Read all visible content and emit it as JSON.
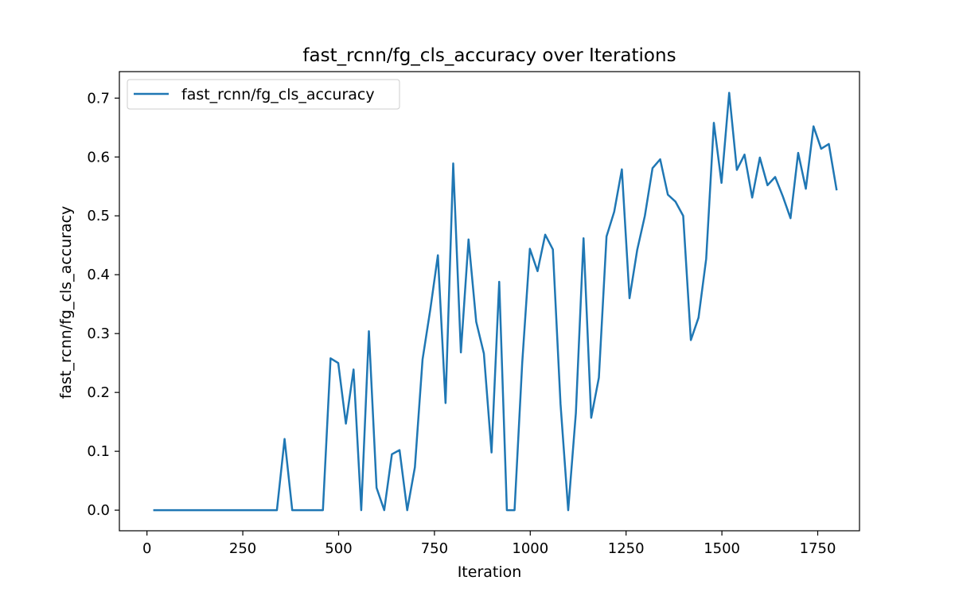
{
  "chart_data": {
    "type": "line",
    "title": "fast_rcnn/fg_cls_accuracy over Iterations",
    "xlabel": "Iteration",
    "ylabel": "fast_rcnn/fg_cls_accuracy",
    "xlim": [
      -72,
      1859
    ],
    "ylim": [
      -0.035,
      0.745
    ],
    "xticks": [
      0,
      250,
      500,
      750,
      1000,
      1250,
      1500,
      1750
    ],
    "yticks": [
      0.0,
      0.1,
      0.2,
      0.3,
      0.4,
      0.5,
      0.6,
      0.7
    ],
    "grid": false,
    "legend_position": "upper-left",
    "series": [
      {
        "name": "fast_rcnn/fg_cls_accuracy",
        "color": "#1f77b4",
        "x": [
          19,
          39,
          59,
          79,
          99,
          119,
          139,
          159,
          179,
          199,
          219,
          239,
          259,
          279,
          299,
          319,
          339,
          359,
          379,
          399,
          419,
          439,
          459,
          479,
          499,
          519,
          539,
          559,
          579,
          599,
          619,
          639,
          659,
          679,
          699,
          719,
          739,
          759,
          779,
          799,
          819,
          839,
          859,
          879,
          899,
          919,
          939,
          959,
          979,
          999,
          1019,
          1039,
          1059,
          1079,
          1099,
          1119,
          1139,
          1159,
          1179,
          1199,
          1219,
          1239,
          1259,
          1279,
          1299,
          1319,
          1339,
          1359,
          1379,
          1399,
          1419,
          1439,
          1459,
          1479,
          1499,
          1519,
          1539,
          1559,
          1579,
          1599,
          1619,
          1639,
          1659,
          1679,
          1699,
          1719,
          1739,
          1759,
          1779,
          1799
        ],
        "y": [
          0,
          0,
          0,
          0,
          0,
          0,
          0,
          0,
          0,
          0,
          0,
          0,
          0,
          0,
          0,
          0,
          0,
          0.121,
          0,
          0,
          0,
          0,
          0,
          0.258,
          0.25,
          0.147,
          0.239,
          0,
          0.304,
          0.038,
          0,
          0.095,
          0.102,
          0,
          0.073,
          0.256,
          0.34,
          0.433,
          0.182,
          0.589,
          0.268,
          0.46,
          0.32,
          0.266,
          0.098,
          0.388,
          0,
          0,
          0.25,
          0.444,
          0.406,
          0.468,
          0.443,
          0.18,
          0,
          0.165,
          0.462,
          0.157,
          0.225,
          0.465,
          0.507,
          0.579,
          0.36,
          0.442,
          0.5,
          0.581,
          0.596,
          0.536,
          0.524,
          0.5,
          0.289,
          0.327,
          0.427,
          0.658,
          0.556,
          0.709,
          0.578,
          0.604,
          0.531,
          0.599,
          0.552,
          0.566,
          0.533,
          0.496,
          0.607,
          0.546,
          0.652,
          0.614,
          0.622,
          0.545
        ]
      }
    ]
  }
}
